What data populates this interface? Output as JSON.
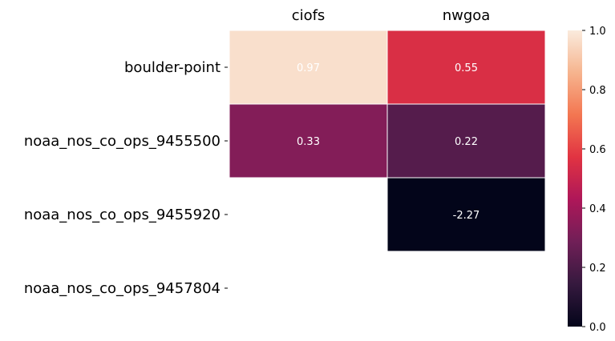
{
  "chart_data": {
    "type": "heatmap",
    "title": "",
    "xlabel": "",
    "ylabel": "",
    "columns": [
      "ciofs",
      "nwgoa"
    ],
    "rows": [
      "boulder-point",
      "noaa_nos_co_ops_9455500",
      "noaa_nos_co_ops_9455920",
      "noaa_nos_co_ops_9457804"
    ],
    "values": [
      [
        0.97,
        0.55
      ],
      [
        0.33,
        0.22
      ],
      [
        null,
        -2.27
      ],
      [
        null,
        null
      ]
    ],
    "value_labels": [
      [
        "0.97",
        "0.55"
      ],
      [
        "0.33",
        "0.22"
      ],
      [
        "",
        "-2.27"
      ],
      [
        "",
        ""
      ]
    ],
    "colorbar": {
      "min": 0.0,
      "max": 1.0,
      "ticks": [
        0.0,
        0.2,
        0.4,
        0.6,
        0.8,
        1.0
      ],
      "tick_labels": [
        "0.0",
        "0.2",
        "0.4",
        "0.6",
        "0.8",
        "1.0"
      ],
      "colormap": "rocket",
      "colormap_stops": [
        "#03051a",
        "#35193e",
        "#701f57",
        "#ae1759",
        "#e13342",
        "#f37651",
        "#f6b48e",
        "#faebdd"
      ]
    },
    "column_labels_position": "top",
    "cell_border_color": "#ffffff"
  }
}
